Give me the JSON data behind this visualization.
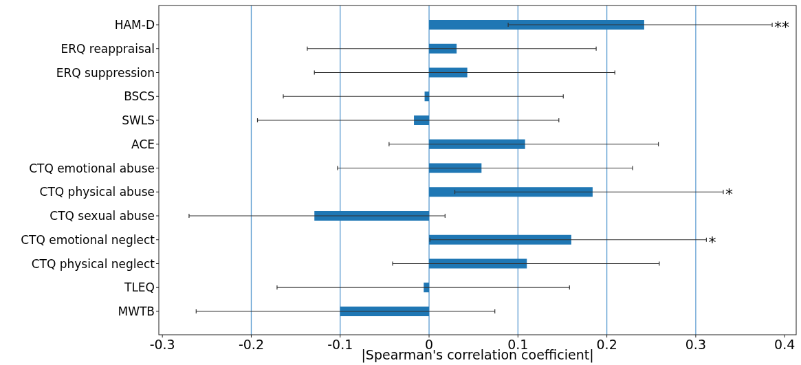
{
  "chart_data": {
    "type": "bar",
    "orientation": "horizontal",
    "xlabel": "|Spearman's correlation coefficient|",
    "categories": [
      "HAM-D",
      "ERQ reappraisal",
      "ERQ suppression",
      "BSCS",
      "SWLS",
      "ACE",
      "CTQ emotional abuse",
      "CTQ physical abuse",
      "CTQ sexual abuse",
      "CTQ emotional neglect",
      "CTQ physical neglect",
      "TLEQ",
      "MWTB"
    ],
    "values": [
      0.242,
      0.031,
      0.043,
      -0.005,
      -0.017,
      0.108,
      0.059,
      0.184,
      -0.129,
      0.16,
      0.11,
      -0.006,
      -0.1
    ],
    "errors": [
      [
        0.089,
        0.386
      ],
      [
        -0.137,
        0.188
      ],
      [
        -0.129,
        0.209
      ],
      [
        -0.164,
        0.151
      ],
      [
        -0.193,
        0.146
      ],
      [
        -0.045,
        0.258
      ],
      [
        -0.103,
        0.229
      ],
      [
        0.029,
        0.331
      ],
      [
        -0.27,
        0.018
      ],
      [
        0.001,
        0.312
      ],
      [
        -0.041,
        0.259
      ],
      [
        -0.171,
        0.158
      ],
      [
        -0.262,
        0.074
      ]
    ],
    "color": "#1f77b4",
    "xlim": [
      -0.304,
      0.413
    ],
    "xticks": [
      -0.3,
      -0.2,
      -0.1,
      0,
      0.1,
      0.2,
      0.3,
      0.4
    ],
    "ref_lines": [
      {
        "axis": "x",
        "value": -0.2,
        "color": "#5b9bd0"
      },
      {
        "axis": "x",
        "value": -0.1,
        "color": "#5b9bd0"
      },
      {
        "axis": "x",
        "value": 0,
        "color": "#5b9bd0"
      },
      {
        "axis": "x",
        "value": 0.1,
        "color": "#5b9bd0"
      },
      {
        "axis": "x",
        "value": 0.2,
        "color": "#5b9bd0"
      },
      {
        "axis": "x",
        "value": 0.3,
        "color": "#5b9bd0"
      }
    ],
    "annotations": [
      {
        "text": "**",
        "x": 0.386,
        "y": "HAM-D"
      },
      {
        "text": "*",
        "x": 0.331,
        "y": "CTQ physical abuse"
      },
      {
        "text": "*",
        "x": 0.312,
        "y": "CTQ emotional neglect"
      }
    ]
  }
}
